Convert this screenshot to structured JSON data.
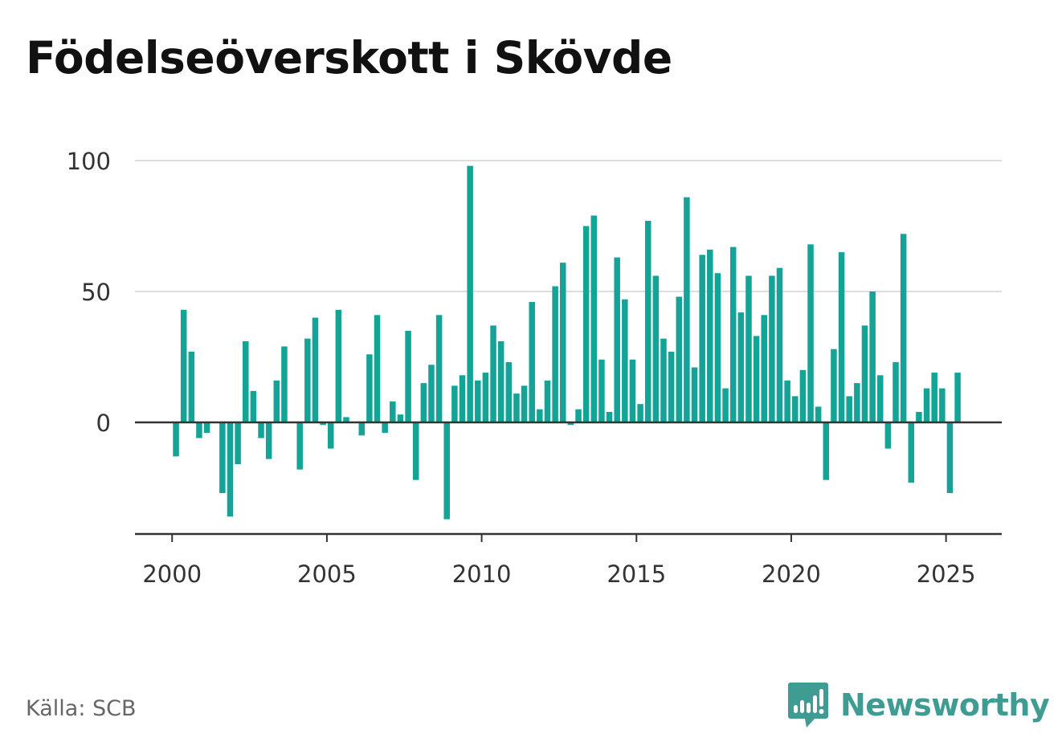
{
  "header": {
    "title": "Födelseöverskott i Skövde"
  },
  "footer": {
    "source": "Källa: SCB",
    "brand": "Newsworthy",
    "brand_icon": "newsworthy-logo-icon"
  },
  "colors": {
    "bar": "#14a497",
    "brand": "#3f9c93",
    "grid": "#dddddd",
    "axis": "#333333"
  },
  "chart_data": {
    "type": "bar",
    "title": "Födelseöverskott i Skövde",
    "xlabel": "",
    "ylabel": "",
    "ylim": [
      -42,
      100
    ],
    "yticks": [
      0,
      50,
      100
    ],
    "xticks": [
      2000,
      2005,
      2010,
      2015,
      2020,
      2025
    ],
    "xlim": [
      1998.8,
      2026.8
    ],
    "grid": true,
    "legend": "none",
    "frequency": "quarterly",
    "x": [
      2000.125,
      2000.375,
      2000.625,
      2000.875,
      2001.125,
      2001.375,
      2001.625,
      2001.875,
      2002.125,
      2002.375,
      2002.625,
      2002.875,
      2003.125,
      2003.375,
      2003.625,
      2003.875,
      2004.125,
      2004.375,
      2004.625,
      2004.875,
      2005.125,
      2005.375,
      2005.625,
      2005.875,
      2006.125,
      2006.375,
      2006.625,
      2006.875,
      2007.125,
      2007.375,
      2007.625,
      2007.875,
      2008.125,
      2008.375,
      2008.625,
      2008.875,
      2009.125,
      2009.375,
      2009.625,
      2009.875,
      2010.125,
      2010.375,
      2010.625,
      2010.875,
      2011.125,
      2011.375,
      2011.625,
      2011.875,
      2012.125,
      2012.375,
      2012.625,
      2012.875,
      2013.125,
      2013.375,
      2013.625,
      2013.875,
      2014.125,
      2014.375,
      2014.625,
      2014.875,
      2015.125,
      2015.375,
      2015.625,
      2015.875,
      2016.125,
      2016.375,
      2016.625,
      2016.875,
      2017.125,
      2017.375,
      2017.625,
      2017.875,
      2018.125,
      2018.375,
      2018.625,
      2018.875,
      2019.125,
      2019.375,
      2019.625,
      2019.875,
      2020.125,
      2020.375,
      2020.625,
      2020.875,
      2021.125,
      2021.375,
      2021.625,
      2021.875,
      2022.125,
      2022.375,
      2022.625,
      2022.875,
      2023.125,
      2023.375,
      2023.625,
      2023.875,
      2024.125,
      2024.375,
      2024.625,
      2024.875,
      2025.125,
      2025.375
    ],
    "values": [
      -13,
      43,
      27,
      -6,
      -4,
      0,
      -27,
      -36,
      -16,
      31,
      12,
      -6,
      -14,
      16,
      29,
      0,
      -18,
      32,
      40,
      -1,
      -10,
      43,
      2,
      0,
      -5,
      26,
      41,
      -4,
      8,
      3,
      35,
      -22,
      15,
      22,
      41,
      -37,
      14,
      18,
      98,
      16,
      19,
      37,
      31,
      23,
      11,
      14,
      46,
      5,
      16,
      52,
      61,
      -1,
      5,
      75,
      79,
      24,
      4,
      63,
      47,
      24,
      7,
      77,
      56,
      32,
      27,
      48,
      86,
      21,
      64,
      66,
      57,
      13,
      67,
      42,
      56,
      33,
      41,
      56,
      59,
      16,
      10,
      20,
      68,
      6,
      -22,
      28,
      65,
      10,
      15,
      37,
      50,
      18,
      -10,
      23,
      72,
      -23,
      4,
      13,
      19,
      13,
      -27,
      19
    ]
  }
}
